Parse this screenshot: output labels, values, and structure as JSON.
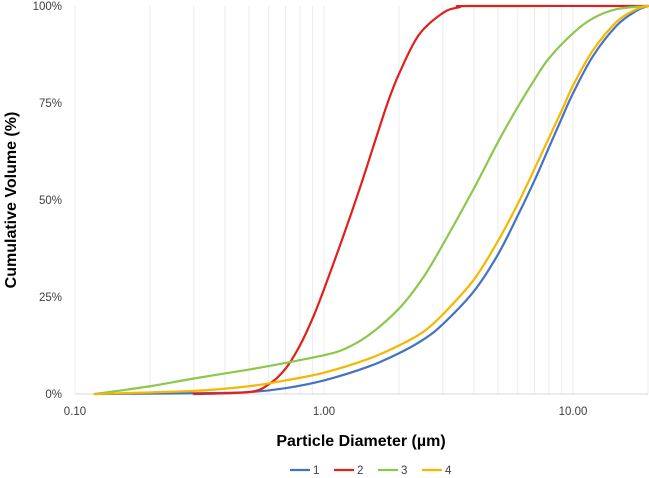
{
  "chart_data": {
    "type": "line",
    "xlabel": "Particle Diameter (µm)",
    "ylabel": "Cumulative Volume (%)",
    "x_scale": "log",
    "xlim": [
      0.1,
      20
    ],
    "ylim": [
      0,
      100
    ],
    "x_ticks": [
      "0.10",
      "1.00",
      "10.00"
    ],
    "y_ticks": [
      "0%",
      "25%",
      "50%",
      "75%",
      "100%"
    ],
    "grid": "vertical minor log gridlines",
    "legend_position": "bottom",
    "series": [
      {
        "name": "1",
        "color": "#4472C4",
        "points": [
          [
            0.12,
            0
          ],
          [
            0.3,
            0.2
          ],
          [
            0.5,
            0.5
          ],
          [
            0.7,
            1.5
          ],
          [
            1.0,
            3.5
          ],
          [
            1.5,
            7
          ],
          [
            2.0,
            10.5
          ],
          [
            2.5,
            14
          ],
          [
            3.0,
            18
          ],
          [
            4.0,
            26.5
          ],
          [
            5.0,
            36
          ],
          [
            6.0,
            46
          ],
          [
            7.0,
            55
          ],
          [
            8.0,
            63.5
          ],
          [
            9.0,
            71
          ],
          [
            10.0,
            77.5
          ],
          [
            12.0,
            87
          ],
          [
            15.0,
            95
          ],
          [
            18.0,
            98.8
          ],
          [
            20.0,
            100
          ]
        ]
      },
      {
        "name": "2",
        "color": "#E0201B",
        "points": [
          [
            0.3,
            0
          ],
          [
            0.5,
            0.5
          ],
          [
            0.6,
            2.5
          ],
          [
            0.7,
            6.5
          ],
          [
            0.8,
            12.5
          ],
          [
            0.9,
            19.5
          ],
          [
            1.0,
            27
          ],
          [
            1.2,
            41
          ],
          [
            1.4,
            53.5
          ],
          [
            1.6,
            65
          ],
          [
            1.8,
            75
          ],
          [
            2.0,
            82.5
          ],
          [
            2.4,
            92.5
          ],
          [
            3.0,
            98.2
          ],
          [
            3.5,
            99.7
          ],
          [
            4.0,
            100
          ],
          [
            20.0,
            100
          ]
        ]
      },
      {
        "name": "3",
        "color": "#8CC84B",
        "points": [
          [
            0.12,
            0
          ],
          [
            0.2,
            2
          ],
          [
            0.3,
            4
          ],
          [
            0.5,
            6.3
          ],
          [
            0.7,
            8
          ],
          [
            1.0,
            10
          ],
          [
            1.2,
            11.5
          ],
          [
            1.5,
            15
          ],
          [
            2.0,
            22
          ],
          [
            2.5,
            30
          ],
          [
            3.0,
            38.5
          ],
          [
            4.0,
            53
          ],
          [
            5.0,
            65
          ],
          [
            6.0,
            74
          ],
          [
            7.0,
            81
          ],
          [
            8.0,
            86.5
          ],
          [
            10.0,
            93
          ],
          [
            12.0,
            96.8
          ],
          [
            15.0,
            99.2
          ],
          [
            20.0,
            100
          ]
        ]
      },
      {
        "name": "4",
        "color": "#F5B700",
        "points": [
          [
            0.12,
            0
          ],
          [
            0.3,
            0.8
          ],
          [
            0.5,
            2
          ],
          [
            0.7,
            3.5
          ],
          [
            1.0,
            5.5
          ],
          [
            1.5,
            9
          ],
          [
            2.0,
            12.5
          ],
          [
            2.5,
            16
          ],
          [
            3.0,
            20.5
          ],
          [
            4.0,
            29.5
          ],
          [
            5.0,
            39.5
          ],
          [
            6.0,
            49
          ],
          [
            7.0,
            58
          ],
          [
            8.0,
            66
          ],
          [
            9.0,
            73
          ],
          [
            10.0,
            79.5
          ],
          [
            12.0,
            88.5
          ],
          [
            15.0,
            96
          ],
          [
            18.0,
            99.2
          ],
          [
            20.0,
            100
          ]
        ]
      }
    ]
  }
}
